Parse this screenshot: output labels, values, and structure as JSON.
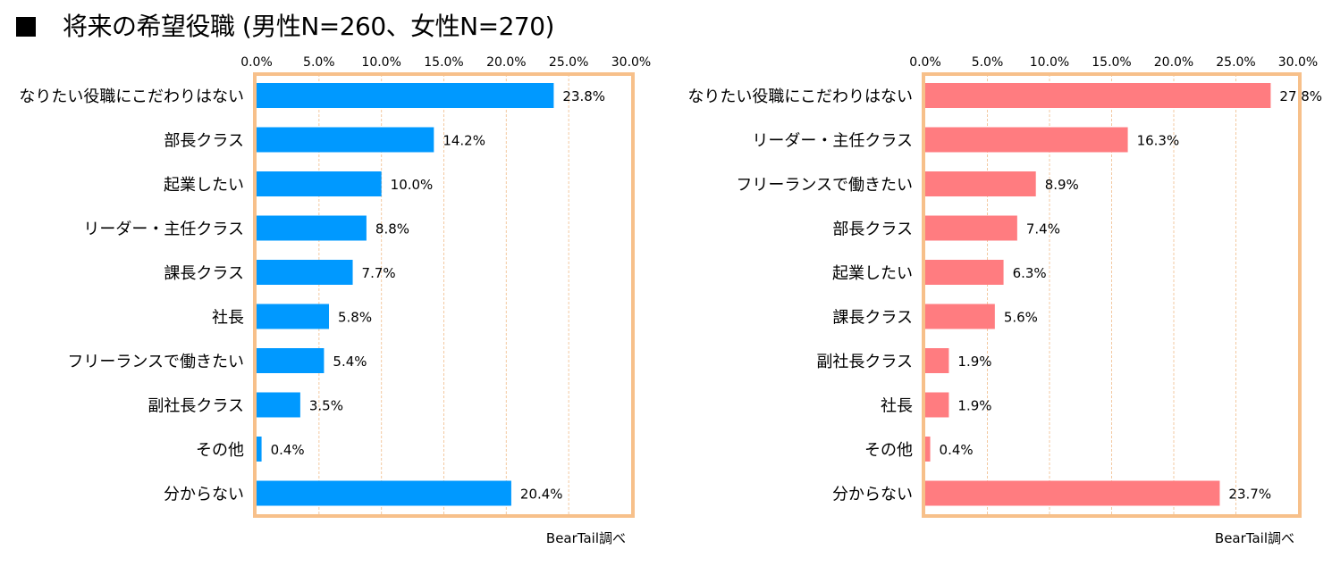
{
  "header": {
    "title": "将来の希望役職 (男性N=260、女性N=270)"
  },
  "colors": {
    "frame": "#f7c08a",
    "gridline": "#f3c9a0",
    "male_bar": "#0099ff",
    "female_bar": "#ff7c80"
  },
  "chart_data": [
    {
      "type": "bar",
      "orientation": "horizontal",
      "xlim": [
        0,
        30
      ],
      "tick_labels": [
        "0.0%",
        "5.0%",
        "10.0%",
        "15.0%",
        "20.0%",
        "25.0%",
        "30.0%"
      ],
      "categories": [
        "なりたい役職にこだわりはない",
        "部長クラス",
        "起業したい",
        "リーダー・主任クラス",
        "課長クラス",
        "社長",
        "フリーランスで働きたい",
        "副社長クラス",
        "その他",
        "分からない"
      ],
      "values": [
        23.8,
        14.2,
        10.0,
        8.8,
        7.7,
        5.8,
        5.4,
        3.5,
        0.4,
        20.4
      ],
      "value_labels": [
        "23.8%",
        "14.2%",
        "10.0%",
        "8.8%",
        "7.7%",
        "5.8%",
        "5.4%",
        "3.5%",
        "0.4%",
        "20.4%"
      ],
      "gridlines": "vertical dashed",
      "legend": "none"
    },
    {
      "type": "bar",
      "orientation": "horizontal",
      "xlim": [
        0,
        30
      ],
      "tick_labels": [
        "0.0%",
        "5.0%",
        "10.0%",
        "15.0%",
        "20.0%",
        "25.0%",
        "30.0%"
      ],
      "categories": [
        "なりたい役職にこだわりはない",
        "リーダー・主任クラス",
        "フリーランスで働きたい",
        "部長クラス",
        "起業したい",
        "課長クラス",
        "副社長クラス",
        "社長",
        "その他",
        "分からない"
      ],
      "values": [
        27.8,
        16.3,
        8.9,
        7.4,
        6.3,
        5.6,
        1.9,
        1.9,
        0.4,
        23.7
      ],
      "value_labels": [
        "27.8%",
        "16.3%",
        "8.9%",
        "7.4%",
        "6.3%",
        "5.6%",
        "1.9%",
        "1.9%",
        "0.4%",
        "23.7%"
      ],
      "gridlines": "vertical dashed",
      "legend": "none"
    }
  ],
  "footer": {
    "male_credit": "BearTail調べ",
    "female_credit": "BearTail調べ"
  }
}
